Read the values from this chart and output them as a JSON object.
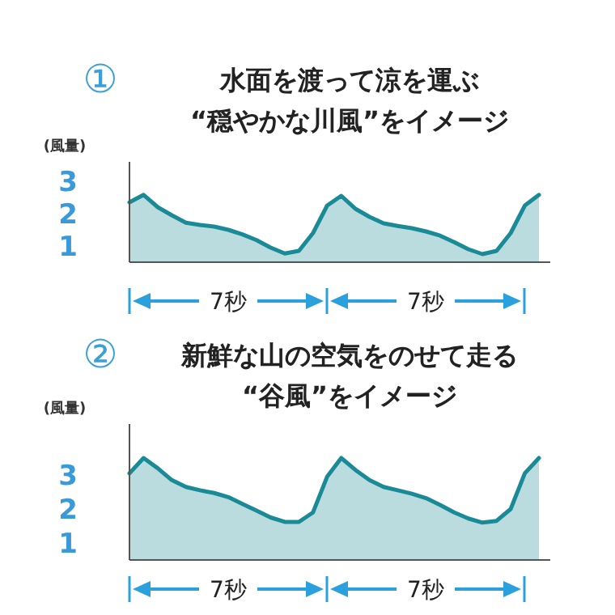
{
  "chart_data": [
    {
      "type": "area",
      "title": "水面を渡って涼を運ぶ",
      "subtitle": "“穏やかな川風”をイメージ",
      "ylabel": "(風量)",
      "annotations": [
        "①",
        "7秒",
        "7秒"
      ],
      "color": "#1a8a96",
      "categories": [
        null,
        null,
        null,
        null,
        null,
        null,
        null,
        null,
        null,
        null,
        null,
        null,
        null,
        null,
        null,
        null,
        null,
        null,
        null,
        null,
        null,
        null,
        null,
        null,
        null,
        null,
        null,
        null,
        null,
        null
      ],
      "values": [
        1.85,
        2.08,
        1.7,
        1.45,
        1.22,
        1.15,
        1.1,
        1.0,
        0.86,
        0.68,
        0.45,
        0.27,
        0.35,
        0.9,
        1.75,
        2.05,
        1.65,
        1.4,
        1.2,
        1.12,
        1.05,
        0.95,
        0.82,
        0.62,
        0.4,
        0.25,
        0.35,
        0.9,
        1.75,
        2.08
      ],
      "ylim": [
        0,
        3.1
      ],
      "yticks": [
        {
          "value": 0.5,
          "label": "1"
        },
        {
          "value": 1.5,
          "label": "2"
        },
        {
          "value": 2.5,
          "label": "3"
        }
      ]
    },
    {
      "type": "area",
      "title": "新鮮な山の空気をのせて走る",
      "subtitle": "“谷風”をイメージ",
      "ylabel": "(風量)",
      "annotations": [
        "②",
        "7秒",
        "7秒"
      ],
      "color": "#1a8a96",
      "categories": [
        null,
        null,
        null,
        null,
        null,
        null,
        null,
        null,
        null,
        null,
        null,
        null,
        null,
        null,
        null,
        null,
        null,
        null,
        null,
        null,
        null,
        null,
        null,
        null,
        null,
        null,
        null,
        null,
        null,
        null
      ],
      "values": [
        2.55,
        3.0,
        2.7,
        2.35,
        2.15,
        2.05,
        1.97,
        1.85,
        1.65,
        1.45,
        1.25,
        1.12,
        1.12,
        1.4,
        2.45,
        3.0,
        2.65,
        2.35,
        2.15,
        2.05,
        1.95,
        1.82,
        1.62,
        1.4,
        1.22,
        1.1,
        1.15,
        1.5,
        2.55,
        3.0
      ],
      "ylim": [
        0,
        4
      ],
      "yticks": [
        {
          "value": 0.5,
          "label": "1"
        },
        {
          "value": 1.5,
          "label": "2"
        },
        {
          "value": 2.5,
          "label": "3"
        }
      ]
    }
  ]
}
